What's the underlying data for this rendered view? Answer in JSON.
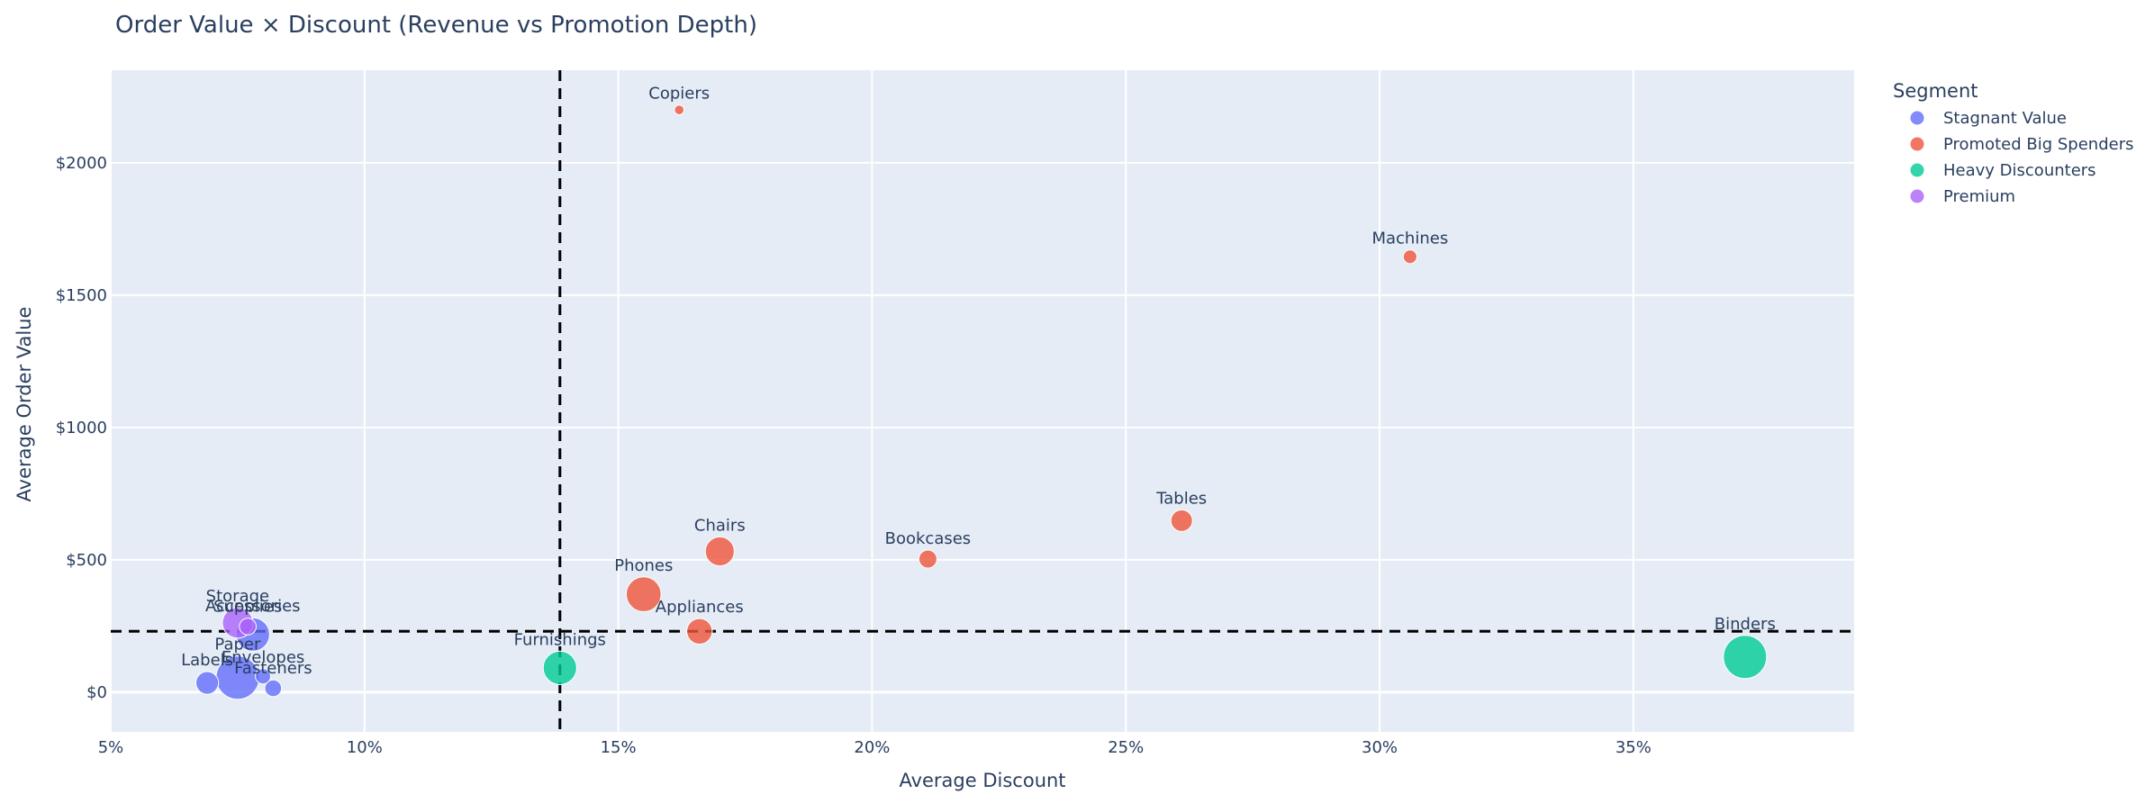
{
  "chart_data": {
    "type": "scatter",
    "title": "Order Value × Discount (Revenue vs Promotion Depth)",
    "xlabel": "Average Discount",
    "ylabel": "Average Order Value",
    "xlim": [
      0.05,
      0.3935
    ],
    "ylim": [
      -150,
      2350
    ],
    "x_ticks": [
      {
        "value": 0.05,
        "label": "5%"
      },
      {
        "value": 0.1,
        "label": "10%"
      },
      {
        "value": 0.15,
        "label": "15%"
      },
      {
        "value": 0.2,
        "label": "20%"
      },
      {
        "value": 0.25,
        "label": "25%"
      },
      {
        "value": 0.3,
        "label": "30%"
      },
      {
        "value": 0.35,
        "label": "35%"
      }
    ],
    "y_ticks": [
      {
        "value": 0,
        "label": "$0"
      },
      {
        "value": 500,
        "label": "$500"
      },
      {
        "value": 1000,
        "label": "$1000"
      },
      {
        "value": 1500,
        "label": "$1500"
      },
      {
        "value": 2000,
        "label": "$2000"
      }
    ],
    "reference_lines": {
      "x": 0.1385,
      "y": 230
    },
    "grid": true,
    "legend": {
      "title": "Segment",
      "placement": "top-right",
      "entries": [
        {
          "name": "Stagnant Value",
          "color": "#636efa"
        },
        {
          "name": "Promoted Big Spenders",
          "color": "#EF553B"
        },
        {
          "name": "Heavy Discounters",
          "color": "#00cc96"
        },
        {
          "name": "Premium",
          "color": "#ab63fa"
        }
      ]
    },
    "points": [
      {
        "label": "Copiers",
        "segment": "Promoted Big Spenders",
        "x": 0.162,
        "y": 2200,
        "size": 0.2
      },
      {
        "label": "Machines",
        "segment": "Promoted Big Spenders",
        "x": 0.306,
        "y": 1645,
        "size": 0.4
      },
      {
        "label": "Tables",
        "segment": "Promoted Big Spenders",
        "x": 0.261,
        "y": 648,
        "size": 1.0
      },
      {
        "label": "Chairs",
        "segment": "Promoted Big Spenders",
        "x": 0.17,
        "y": 532,
        "size": 1.8
      },
      {
        "label": "Bookcases",
        "segment": "Promoted Big Spenders",
        "x": 0.211,
        "y": 503,
        "size": 0.7
      },
      {
        "label": "Phones",
        "segment": "Promoted Big Spenders",
        "x": 0.155,
        "y": 370,
        "size": 2.6
      },
      {
        "label": "Appliances",
        "segment": "Promoted Big Spenders",
        "x": 0.166,
        "y": 230,
        "size": 1.4
      },
      {
        "label": "Binders",
        "segment": "Heavy Discounters",
        "x": 0.372,
        "y": 133,
        "size": 4.0
      },
      {
        "label": "Furnishings",
        "segment": "Heavy Discounters",
        "x": 0.1385,
        "y": 92,
        "size": 2.4
      },
      {
        "label": "Storage",
        "segment": "Premium",
        "x": 0.075,
        "y": 262,
        "size": 2.0
      },
      {
        "label": "Supplies",
        "segment": "Premium",
        "x": 0.077,
        "y": 248,
        "size": 0.6
      },
      {
        "label": "Accessories",
        "segment": "Stagnant Value",
        "x": 0.078,
        "y": 218,
        "size": 2.4
      },
      {
        "label": "Paper",
        "segment": "Stagnant Value",
        "x": 0.075,
        "y": 55,
        "size": 4.0
      },
      {
        "label": "Envelopes",
        "segment": "Stagnant Value",
        "x": 0.08,
        "y": 60,
        "size": 0.5
      },
      {
        "label": "Fasteners",
        "segment": "Stagnant Value",
        "x": 0.082,
        "y": 15,
        "size": 0.6
      },
      {
        "label": "Labels",
        "segment": "Stagnant Value",
        "x": 0.069,
        "y": 35,
        "size": 1.1
      }
    ]
  }
}
